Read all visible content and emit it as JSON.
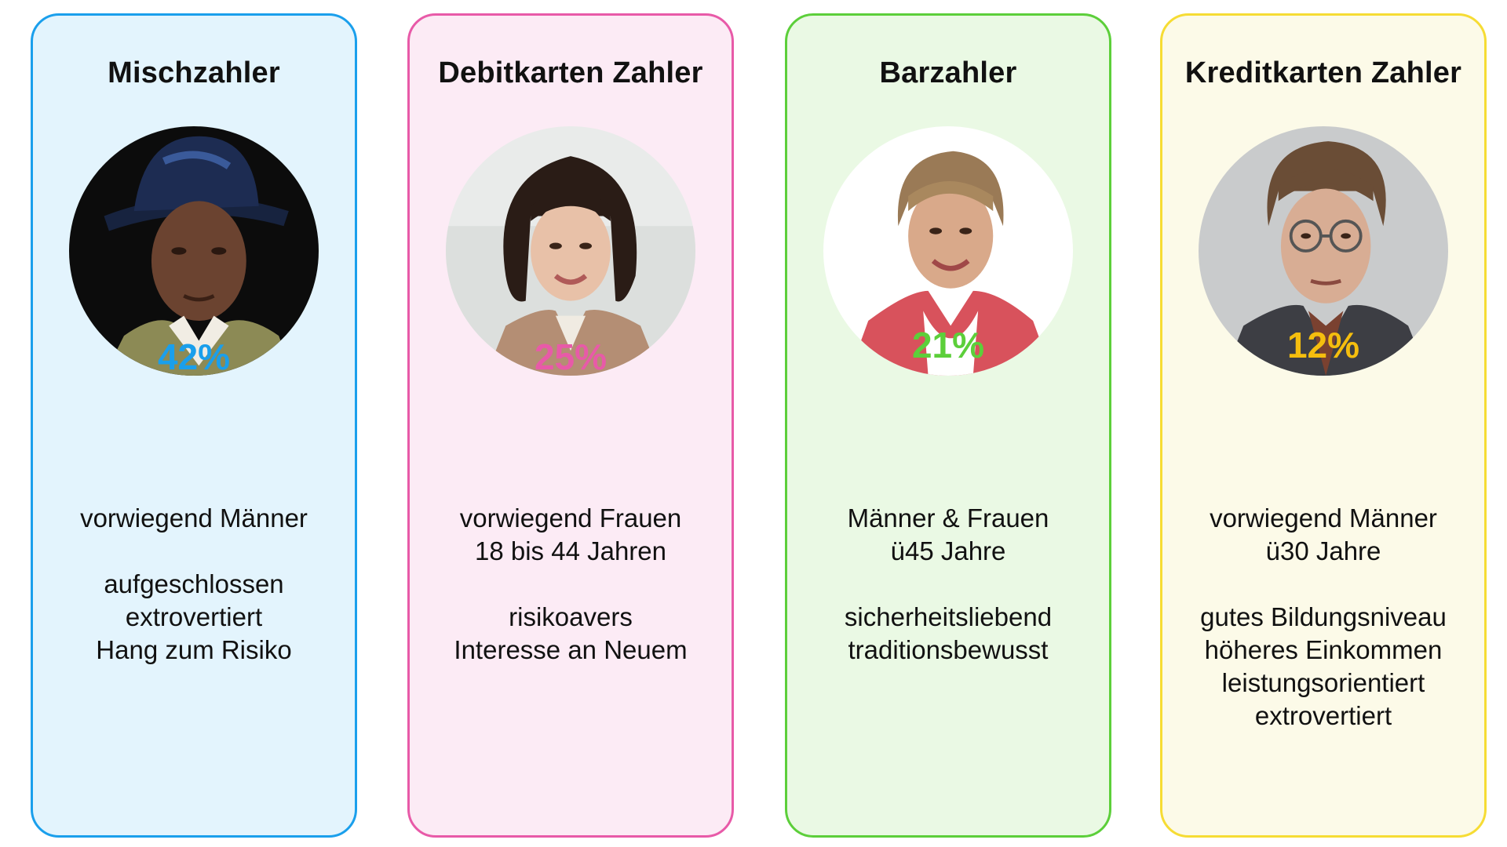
{
  "cards": [
    {
      "title": "Mischzahler",
      "percent": "42%",
      "colors": {
        "border": "#1a9fec",
        "background": "#e3f4fd",
        "percent": "#1a9fec"
      },
      "portrait_icon": "man-with-hat-portrait",
      "groups": [
        [
          "vorwiegend Männer"
        ],
        [
          "aufgeschlossen",
          "extrovertiert",
          "Hang zum Risiko"
        ]
      ]
    },
    {
      "title": "Debitkarten Zahler",
      "percent": "25%",
      "colors": {
        "border": "#e85aa8",
        "background": "#fcebf5",
        "percent": "#e85aa8"
      },
      "portrait_icon": "young-woman-portrait",
      "groups": [
        [
          "vorwiegend Frauen",
          "18 bis 44 Jahren"
        ],
        [
          "risikoavers",
          "Interesse an Neuem"
        ]
      ]
    },
    {
      "title": "Barzahler",
      "percent": "21%",
      "colors": {
        "border": "#5ccf3a",
        "background": "#eaf9e4",
        "percent": "#5ccf3a"
      },
      "portrait_icon": "older-woman-portrait",
      "groups": [
        [
          "Männer & Frauen",
          "ü45 Jahre"
        ],
        [
          "sicherheitsliebend",
          "traditionsbewusst"
        ]
      ]
    },
    {
      "title": "Kreditkarten Zahler",
      "percent": "12%",
      "colors": {
        "border": "#f6dc34",
        "background": "#fcfae8",
        "percent": "#f5be0e"
      },
      "portrait_icon": "man-with-glasses-portrait",
      "groups": [
        [
          "vorwiegend Männer",
          "ü30 Jahre"
        ],
        [
          "gutes Bildungsniveau",
          "höheres Einkommen",
          "leistungsorientiert",
          "extrovertiert"
        ]
      ]
    }
  ]
}
